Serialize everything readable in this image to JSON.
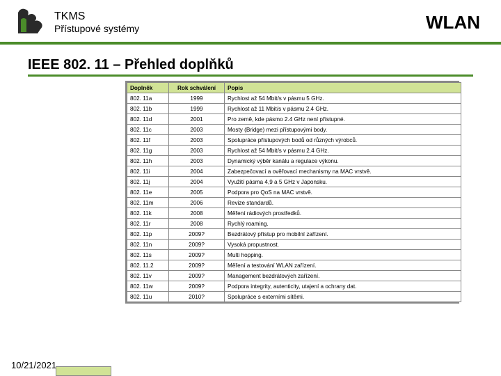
{
  "header": {
    "org": "TKMS",
    "subtitle": "Přístupové systémy",
    "right": "WLAN",
    "logo_color1": "#1a1a1a",
    "logo_color2": "#4b8c2a"
  },
  "section_title": "IEEE 802. 11 – Přehled doplňků",
  "table": {
    "header_bg": "#d1e396",
    "columns": [
      "Doplněk",
      "Rok schválení",
      "Popis"
    ],
    "rows": [
      [
        "802. 11a",
        "1999",
        "Rychlost až 54 Mbit/s v pásmu 5 GHz."
      ],
      [
        "802. 11b",
        "1999",
        "Rychlost až 11 Mbit/s v pásmu 2.4 GHz."
      ],
      [
        "802. 11d",
        "2001",
        "Pro země, kde pásmo 2.4 GHz není přístupné."
      ],
      [
        "802. 11c",
        "2003",
        "Mosty (Bridge) mezi přístupovými body."
      ],
      [
        "802. 11f",
        "2003",
        "Spolupráce přístupových bodů od různých výrobců."
      ],
      [
        "802. 11g",
        "2003",
        "Rychlost až 54 Mbit/s v pásmu 2.4 GHz."
      ],
      [
        "802. 11h",
        "2003",
        "Dynamický výběr kanálu a regulace výkonu."
      ],
      [
        "802. 11i",
        "2004",
        "Zabezpečovací a ověřovací mechanismy na MAC vrstvě."
      ],
      [
        "802. 11j",
        "2004",
        "Využití pásma 4,9 a 5 GHz v Japonsku."
      ],
      [
        "802. 11e",
        "2005",
        "Podpora pro QoS na MAC vrstvě."
      ],
      [
        "802. 11m",
        "2006",
        "Revize standardů."
      ],
      [
        "802. 11k",
        "2008",
        "Měření rádiových prostředků."
      ],
      [
        "802. 11r",
        "2008",
        "Rychlý roaming."
      ],
      [
        "802. 11p",
        "2009?",
        "Bezdrátový přístup pro mobilní zařízení."
      ],
      [
        "802. 11n",
        "2009?",
        "Vysoká propustnost."
      ],
      [
        "802. 11s",
        "2009?",
        "Multi hopping."
      ],
      [
        "802. 11.2",
        "2009?",
        "Měření a testování WLAN zařízení."
      ],
      [
        "802. 11v",
        "2009?",
        "Management bezdrátových zařízení."
      ],
      [
        "802. 11w",
        "2009?",
        "Podpora integrity, autenticity, utajení a ochrany dat."
      ],
      [
        "802. 11u",
        "2010?",
        "Spolupráce s externími sítěmi."
      ]
    ]
  },
  "footer": {
    "date": "10/21/2021"
  }
}
